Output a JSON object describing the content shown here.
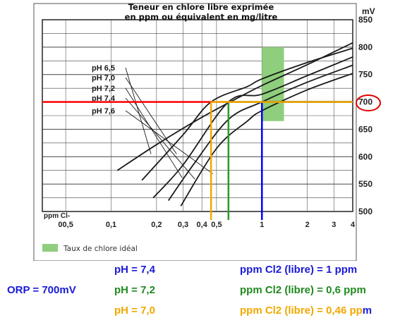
{
  "chart_data": {
    "type": "line",
    "title_line1": "Teneur en chlore libre exprimée",
    "title_line2": "en ppm ou équivalent en mg/litre",
    "right_axis_unit": "mV",
    "bottom_axis_label": "ppm Cl-",
    "y_ticks": [
      "850",
      "800",
      "750",
      "700",
      "650",
      "600",
      "550",
      "500"
    ],
    "y_ticks_values": [
      850,
      800,
      750,
      700,
      650,
      600,
      550,
      500
    ],
    "x_ticks": [
      "00,5",
      "0,1",
      "0,2",
      "0,3",
      "0,4",
      "0,5",
      "1",
      "2",
      "3",
      "4"
    ],
    "x_ticks_values": [
      0.05,
      0.1,
      0.2,
      0.3,
      0.4,
      0.5,
      1,
      2,
      3,
      4
    ],
    "ylim": [
      500,
      850
    ],
    "x_scale": "log",
    "xlim": [
      0.035,
      4
    ],
    "series": [
      {
        "name": "pH 6,5",
        "x": [
          0.11,
          0.2,
          0.4,
          0.7,
          1,
          2,
          4
        ],
        "y": [
          575,
          622,
          672,
          708,
          730,
          768,
          808
        ]
      },
      {
        "name": "pH 7,0",
        "x": [
          0.16,
          0.3,
          0.46,
          0.8,
          1,
          2,
          4
        ],
        "y": [
          557,
          640,
          700,
          728,
          742,
          772,
          798
        ]
      },
      {
        "name": "pH 7,2",
        "x": [
          0.19,
          0.3,
          0.6,
          1,
          2,
          4
        ],
        "y": [
          525,
          585,
          700,
          714,
          748,
          782
        ]
      },
      {
        "name": "pH 7,4",
        "x": [
          0.24,
          0.35,
          0.6,
          1,
          2,
          4
        ],
        "y": [
          520,
          585,
          668,
          700,
          736,
          767
        ]
      },
      {
        "name": "pH 7,6",
        "x": [
          0.29,
          0.5,
          0.8,
          1,
          2,
          4
        ],
        "y": [
          510,
          615,
          665,
          684,
          722,
          752
        ]
      }
    ],
    "ideal_zone": {
      "label": "Taux de chlore idéal",
      "x": [
        1,
        1.4
      ],
      "y": [
        665,
        800
      ],
      "color": "#8fce7c"
    },
    "reference_line": {
      "y": 700,
      "color": "#ff0000"
    },
    "readings": [
      {
        "x": 1,
        "y": 700,
        "color": "#0000ff"
      },
      {
        "x": 0.6,
        "y": 700,
        "color": "#2a9a2a"
      },
      {
        "x": 0.46,
        "y": 700,
        "color": "#f0a800"
      }
    ],
    "highlight_tick": "700",
    "grid": true
  },
  "results": {
    "orp": "ORP = 700mV",
    "rows": [
      {
        "ph": "pH  = 7,4",
        "ppm": "ppm Cl2 (libre) = 1 ppm",
        "color": "#1a1ad8"
      },
      {
        "ph": "pH  = 7,2",
        "ppm": "ppm Cl2 (libre) = 0,6 ppm",
        "color": "#1f8a1f"
      },
      {
        "ph": "pH  = 7,0",
        "ppm_main": "ppm Cl2 (libre) = 0,46 pp",
        "ppm_tail": "m",
        "color": "#f0a800",
        "tail_color": "#1a1ad8"
      }
    ]
  }
}
